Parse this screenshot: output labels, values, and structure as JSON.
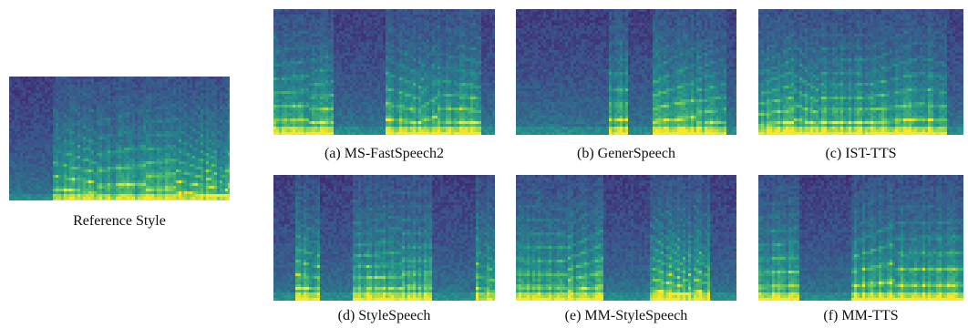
{
  "figure": {
    "reference": {
      "caption": "Reference Style"
    },
    "panels": [
      {
        "caption": "(a) MS-FastSpeech2"
      },
      {
        "caption": "(b) GenerSpeech"
      },
      {
        "caption": "(c) IST-TTS"
      },
      {
        "caption": "(d) StyleSpeech"
      },
      {
        "caption": "(e) MM-StyleSpeech"
      },
      {
        "caption": "(f) MM-TTS"
      }
    ]
  }
}
